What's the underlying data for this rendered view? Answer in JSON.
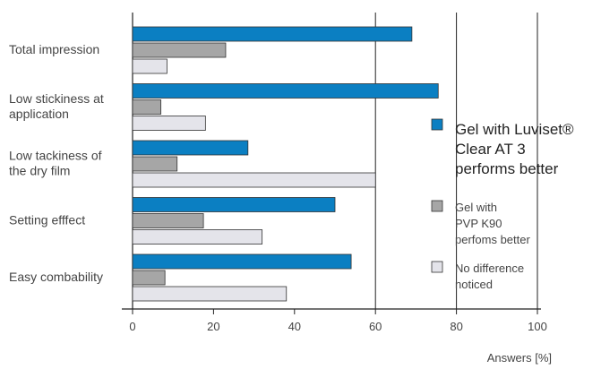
{
  "chart_data": {
    "type": "bar",
    "orientation": "horizontal",
    "categories": [
      [
        "Total impression"
      ],
      [
        "Low stickiness at",
        "application"
      ],
      [
        "Low tackiness of",
        "the dry film"
      ],
      [
        "Setting efffect"
      ],
      [
        "Easy combability"
      ]
    ],
    "series": [
      {
        "name": [
          "Gel with Luviset®",
          "Clear AT 3",
          "performs better"
        ],
        "color": "#0b7fc2",
        "values": [
          69,
          75.5,
          28.5,
          50,
          54
        ]
      },
      {
        "name": [
          "Gel with",
          "PVP K90",
          "perfoms better"
        ],
        "color": "#a6a6a6",
        "values": [
          23,
          7,
          11,
          17.5,
          8
        ]
      },
      {
        "name": [
          "No difference",
          "noticed"
        ],
        "color": "#e4e4ea",
        "values": [
          8.5,
          18,
          60,
          32,
          38
        ]
      }
    ],
    "xlim": [
      0,
      100
    ],
    "xticks": [
      0,
      20,
      40,
      60,
      80,
      100
    ],
    "xlabel": "Answers [%]",
    "grid": "vertical at 60, 80, 100",
    "legend_position": "right"
  }
}
